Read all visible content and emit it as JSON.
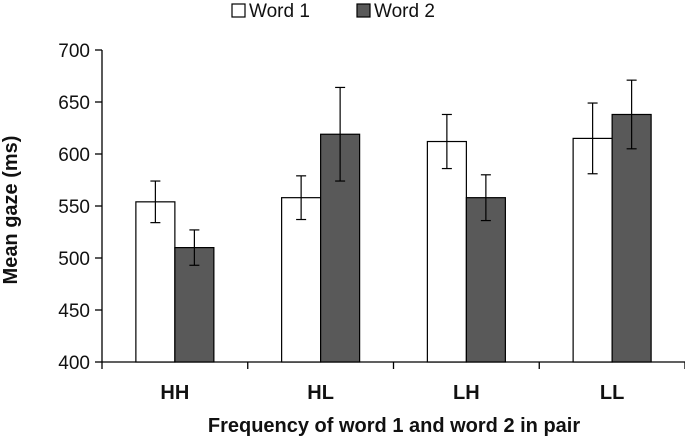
{
  "chart_data": {
    "type": "bar",
    "categories": [
      "HH",
      "HL",
      "LH",
      "LL"
    ],
    "series": [
      {
        "name": "Word 1",
        "color": "#ffffff",
        "values": [
          554,
          558,
          612,
          615
        ],
        "error": [
          20,
          21,
          26,
          34
        ]
      },
      {
        "name": "Word 2",
        "color": "#595959",
        "values": [
          510,
          619,
          558,
          638
        ],
        "error": [
          17,
          45,
          22,
          33
        ]
      }
    ],
    "xlabel": "Frequency of word 1 and word 2 in pair",
    "ylabel": "Mean gaze (ms)",
    "ylim": [
      400,
      700
    ],
    "yticks": [
      400,
      450,
      500,
      550,
      600,
      650,
      700
    ],
    "grid": false,
    "legend_position": "top"
  }
}
